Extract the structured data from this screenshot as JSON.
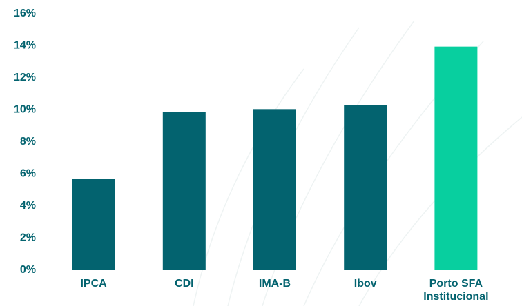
{
  "chart_data": {
    "type": "bar",
    "title": "",
    "xlabel": "",
    "ylabel": "",
    "categories": [
      [
        "IPCA"
      ],
      [
        "CDI"
      ],
      [
        "IMA-B"
      ],
      [
        "Ibov"
      ],
      [
        "Porto SFA",
        "Institucional"
      ]
    ],
    "values": [
      5.7,
      9.85,
      10.05,
      10.3,
      13.95
    ],
    "bar_colors": [
      "#03636f",
      "#03636f",
      "#03636f",
      "#03636f",
      "#08cf9f"
    ],
    "ylim": [
      0,
      16
    ],
    "yticks": [
      0,
      2,
      4,
      6,
      8,
      10,
      12,
      14,
      16
    ],
    "ytick_labels": [
      "0%",
      "2%",
      "4%",
      "6%",
      "8%",
      "10%",
      "12%",
      "14%",
      "16%"
    ],
    "tick_color": "#03636f",
    "grid": false,
    "legend": false
  }
}
